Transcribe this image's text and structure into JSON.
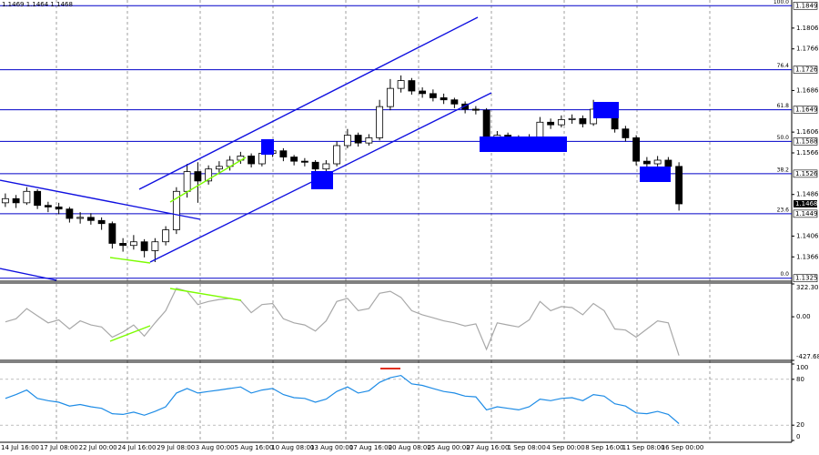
{
  "chart_data": [
    {
      "type": "candlestick",
      "header": "1.1469 1.1464 1.1468",
      "color": "#000000",
      "open": [
        1.147,
        1.1478,
        1.147,
        1.1492,
        1.1465,
        1.1462,
        1.1458,
        1.144,
        1.1442,
        1.1436,
        1.143,
        1.1392,
        1.1388,
        1.1395,
        1.1378,
        1.1395,
        1.1418,
        1.1492,
        1.153,
        1.1512,
        1.1535,
        1.154,
        1.1552,
        1.156,
        1.1545,
        1.1565,
        1.157,
        1.1558,
        1.155,
        1.1548,
        1.1535,
        1.1545,
        1.158,
        1.16,
        1.1585,
        1.1595,
        1.1655,
        1.169,
        1.1705,
        1.1685,
        1.168,
        1.1672,
        1.1668,
        1.166,
        1.165,
        1.1648,
        1.159,
        1.16,
        1.1592,
        1.1585,
        1.1595,
        1.1625,
        1.162,
        1.163,
        1.1632,
        1.1622,
        1.165,
        1.1645,
        1.1612,
        1.1595,
        1.155,
        1.1545,
        1.1552,
        1.154
      ],
      "high": [
        1.1488,
        1.1485,
        1.15,
        1.1496,
        1.1472,
        1.147,
        1.1462,
        1.1452,
        1.145,
        1.1442,
        1.1434,
        1.1402,
        1.1408,
        1.14,
        1.1402,
        1.1425,
        1.15,
        1.1545,
        1.1548,
        1.1542,
        1.155,
        1.156,
        1.1568,
        1.1565,
        1.1575,
        1.159,
        1.1575,
        1.1562,
        1.1556,
        1.1552,
        1.1552,
        1.1588,
        1.1612,
        1.1605,
        1.1602,
        1.1668,
        1.1708,
        1.1715,
        1.171,
        1.1692,
        1.1688,
        1.168,
        1.1672,
        1.1665,
        1.1656,
        1.1652,
        1.1608,
        1.1605,
        1.16,
        1.1602,
        1.1635,
        1.1632,
        1.1638,
        1.164,
        1.1638,
        1.1668,
        1.166,
        1.165,
        1.1618,
        1.16,
        1.1558,
        1.156,
        1.1558,
        1.1548
      ],
      "low": [
        1.1462,
        1.146,
        1.1466,
        1.1458,
        1.1452,
        1.1448,
        1.1432,
        1.143,
        1.1428,
        1.1418,
        1.1382,
        1.1376,
        1.138,
        1.1365,
        1.1356,
        1.1388,
        1.141,
        1.148,
        1.147,
        1.1505,
        1.1525,
        1.1532,
        1.1545,
        1.1538,
        1.154,
        1.1558,
        1.155,
        1.1542,
        1.154,
        1.1528,
        1.153,
        1.154,
        1.1575,
        1.1578,
        1.158,
        1.159,
        1.1648,
        1.1682,
        1.1678,
        1.1672,
        1.1665,
        1.166,
        1.1652,
        1.1642,
        1.164,
        1.1582,
        1.1584,
        1.1585,
        1.1578,
        1.158,
        1.159,
        1.1612,
        1.1615,
        1.1622,
        1.1615,
        1.1618,
        1.1638,
        1.1605,
        1.1588,
        1.1542,
        1.1538,
        1.154,
        1.1532,
        1.1455
      ],
      "close": [
        1.1478,
        1.147,
        1.1492,
        1.1465,
        1.1462,
        1.1458,
        1.144,
        1.1442,
        1.1436,
        1.143,
        1.1392,
        1.1388,
        1.1395,
        1.1378,
        1.1395,
        1.1418,
        1.1492,
        1.153,
        1.1512,
        1.1535,
        1.154,
        1.1552,
        1.156,
        1.1545,
        1.1565,
        1.157,
        1.1558,
        1.155,
        1.1548,
        1.1535,
        1.1545,
        1.158,
        1.16,
        1.1585,
        1.1595,
        1.1655,
        1.169,
        1.1705,
        1.1685,
        1.168,
        1.1672,
        1.1668,
        1.166,
        1.165,
        1.1648,
        1.159,
        1.16,
        1.1592,
        1.1585,
        1.1595,
        1.1625,
        1.162,
        1.163,
        1.1632,
        1.1622,
        1.165,
        1.1645,
        1.1612,
        1.1595,
        1.155,
        1.1545,
        1.1552,
        1.154,
        1.1468
      ],
      "ylim": [
        1.1321,
        1.186
      ],
      "yticks": [
        1.1366,
        1.1406,
        1.1486,
        1.1566,
        1.1606,
        1.1686,
        1.1766,
        1.1806
      ],
      "fib_levels": [
        {
          "label": "0.0",
          "price": 1.1325
        },
        {
          "label": "23.6",
          "price": 1.1449
        },
        {
          "label": "38.2",
          "price": 1.1526
        },
        {
          "label": "50.0",
          "price": 1.1588
        },
        {
          "label": "61.8",
          "price": 1.1649
        },
        {
          "label": "76.4",
          "price": 1.1726
        },
        {
          "label": "100.0",
          "price": 1.1849
        }
      ],
      "fib_color": "#0000c8",
      "last_price": 1.1468
    },
    {
      "type": "line",
      "color": "#a8a8a8",
      "values": [
        -50,
        -20,
        80,
        10,
        -60,
        -30,
        -120,
        -40,
        -80,
        -100,
        -200,
        -150,
        -80,
        -190,
        -60,
        60,
        280,
        250,
        120,
        150,
        170,
        180,
        160,
        40,
        120,
        130,
        -20,
        -60,
        -80,
        -140,
        -40,
        150,
        180,
        60,
        80,
        230,
        250,
        190,
        60,
        20,
        -10,
        -40,
        -60,
        -90,
        -70,
        -320,
        -60,
        -80,
        -100,
        -30,
        150,
        60,
        100,
        90,
        20,
        130,
        60,
        -120,
        -130,
        -200,
        -120,
        -40,
        -60,
        -380
      ],
      "ylim": [
        -427.686,
        322.3074
      ],
      "yticks": [
        -427.686,
        {
          "value": 0,
          "label": "0.00"
        },
        322.3074
      ]
    },
    {
      "type": "line",
      "color": "#1e8ce6",
      "values": [
        55,
        60,
        66,
        55,
        52,
        50,
        45,
        47,
        44,
        42,
        35,
        34,
        37,
        33,
        38,
        44,
        62,
        68,
        62,
        64,
        66,
        68,
        70,
        62,
        66,
        68,
        60,
        56,
        55,
        50,
        54,
        64,
        70,
        62,
        65,
        76,
        82,
        85,
        74,
        72,
        68,
        64,
        62,
        58,
        57,
        40,
        44,
        42,
        40,
        44,
        54,
        52,
        55,
        56,
        52,
        60,
        58,
        48,
        45,
        36,
        35,
        38,
        34,
        22
      ],
      "ylim": [
        0,
        100
      ],
      "yticks": [
        0,
        20,
        80,
        100
      ],
      "levels": [
        20,
        80
      ]
    }
  ],
  "x_axis_labels": [
    "14 Jul 16:00",
    "17 Jul 08:00",
    "22 Jul 00:00",
    "24 Jul 16:00",
    "29 Jul 08:00",
    "3 Aug 00:00",
    "5 Aug 16:00",
    "10 Aug 08:00",
    "13 Aug 00:00",
    "17 Aug 16:00",
    "20 Aug 08:00",
    "25 Aug 00:00",
    "27 Aug 16:00",
    "1 Sep 08:00",
    "4 Sep 00:00",
    "8 Sep 16:00",
    "11 Sep 08:00",
    "16 Sep 00:00"
  ]
}
